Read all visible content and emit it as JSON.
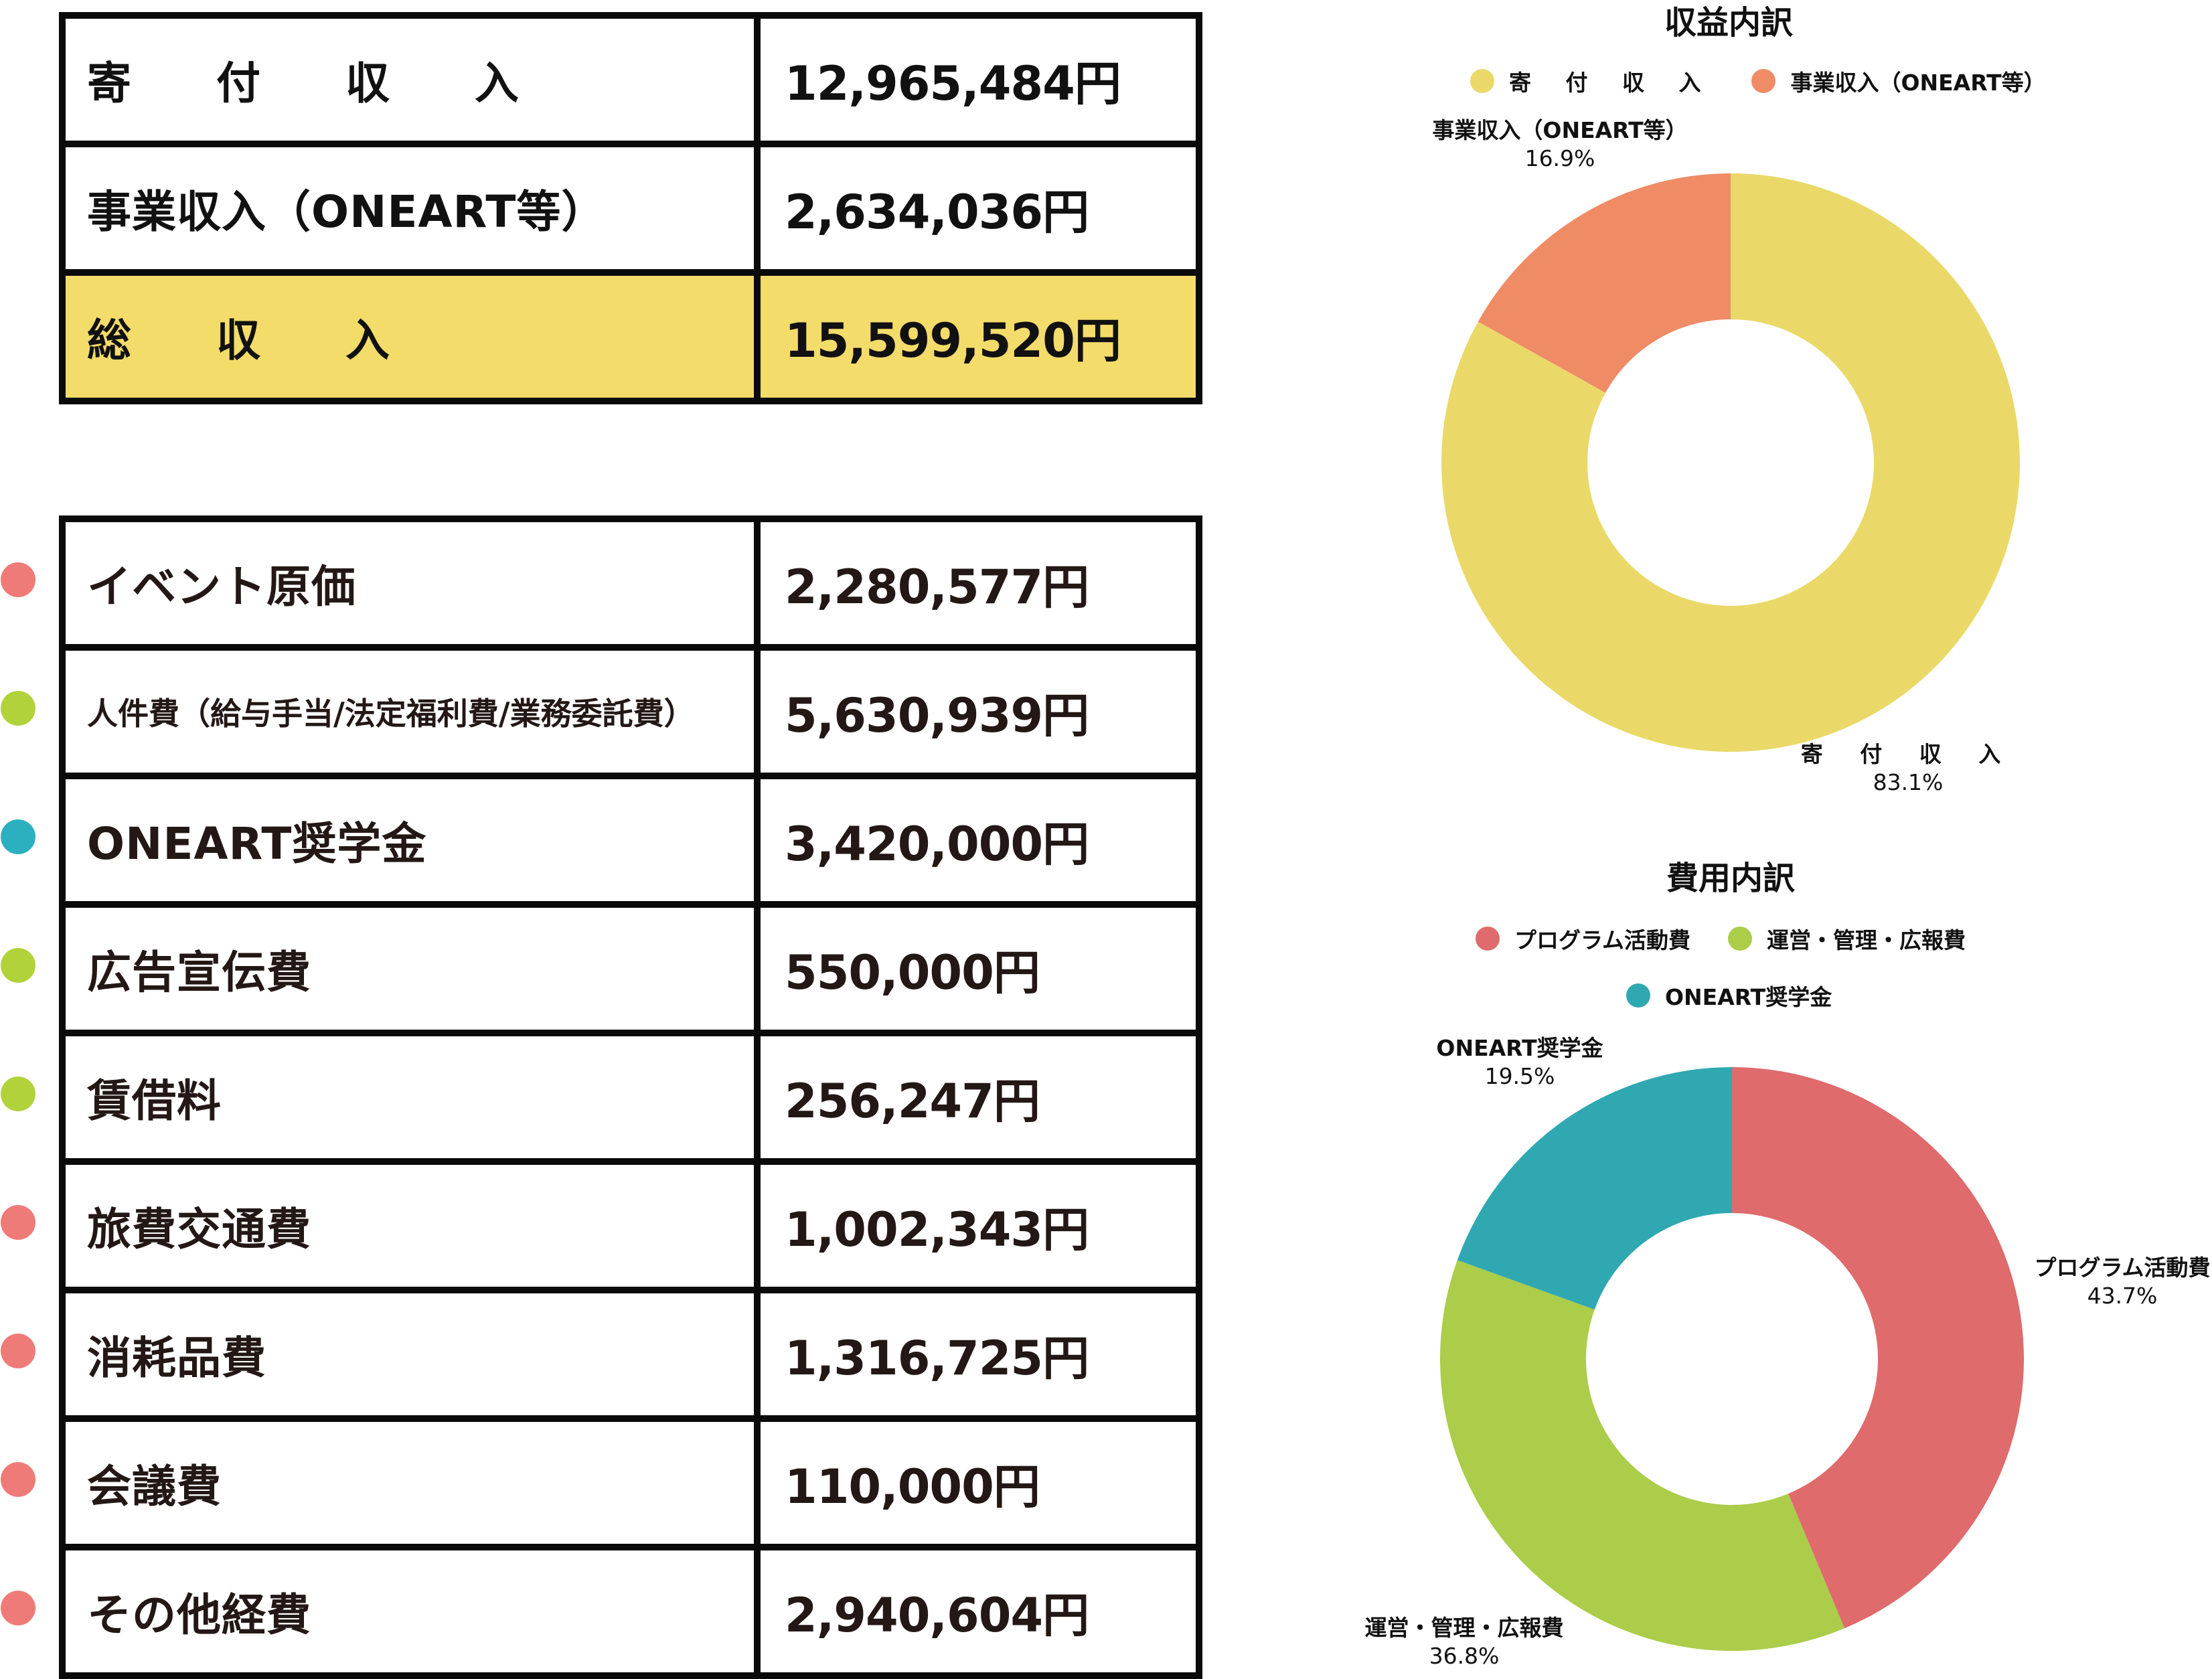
{
  "income_table": {
    "rows": [
      {
        "label": "寄 付 収 入",
        "value": "12,965,484円"
      },
      {
        "label": "事業収入（ONEART等）",
        "value": "2,634,036円"
      },
      {
        "label": "総 収 入",
        "value": "15,599,520円",
        "highlight": true
      }
    ]
  },
  "expense_table": {
    "rows": [
      {
        "label": "イベント原価",
        "value": "2,280,577円",
        "dot_color": "#ee7b78"
      },
      {
        "label": "人件費（給与手当/法定福利費/業務委託費）",
        "value": "5,630,939円",
        "dot_color": "#b2d23c"
      },
      {
        "label": "ONEART奨学金",
        "value": "3,420,000円",
        "dot_color": "#2cb0c0"
      },
      {
        "label": "広告宣伝費",
        "value": "550,000円",
        "dot_color": "#b2d23c"
      },
      {
        "label": "賃借料",
        "value": "256,247円",
        "dot_color": "#b2d23c"
      },
      {
        "label": "旅費交通費",
        "value": "1,002,343円",
        "dot_color": "#ee7b78"
      },
      {
        "label": "消耗品費",
        "value": "1,316,725円",
        "dot_color": "#ee7b78"
      },
      {
        "label": "会議費",
        "value": "110,000円",
        "dot_color": "#ee7b78"
      },
      {
        "label": "その他経費",
        "value": "2,940,604円",
        "dot_color": "#ee7b78"
      }
    ]
  },
  "colors": {
    "highlight_row": "#f3dc6a",
    "income_donation": "#ead968",
    "income_business": "#ef8c66",
    "expense_program": "#df6b6c",
    "expense_admin": "#abcd4a",
    "expense_scholarship": "#2fa8b1"
  },
  "chart_data": [
    {
      "type": "pie",
      "donut": true,
      "title": "収益内訳",
      "categories": [
        "寄 付 収 入",
        "事業収入（ONEART等）"
      ],
      "values": [
        83.1,
        16.9
      ],
      "labels": [
        "83.1%",
        "16.9%"
      ],
      "colors": [
        "#ead968",
        "#ef8c66"
      ],
      "legend": [
        "寄 付 収 入",
        "事業収入（ONEART等）"
      ],
      "legend_position": "top"
    },
    {
      "type": "pie",
      "donut": true,
      "title": "費用内訳",
      "categories": [
        "プログラム活動費",
        "運営・管理・広報費",
        "ONEART奨学金"
      ],
      "values": [
        43.7,
        36.8,
        19.5
      ],
      "labels": [
        "43.7%",
        "36.8%",
        "19.5%"
      ],
      "colors": [
        "#df6b6c",
        "#abcd4a",
        "#2fa8b1"
      ],
      "legend": [
        "プログラム活動費",
        "運営・管理・広報費",
        "ONEART奨学金"
      ],
      "legend_position": "top"
    }
  ]
}
